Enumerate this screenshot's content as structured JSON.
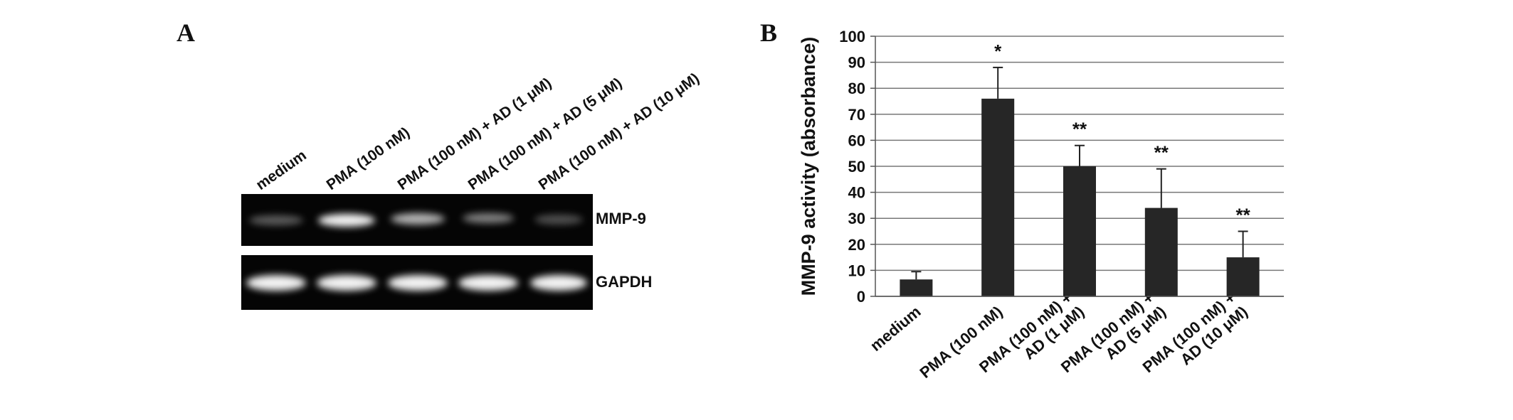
{
  "panel_labels": [
    "A",
    "B"
  ],
  "gel": {
    "lanes": [
      "medium",
      "PMA (100 nM)",
      "PMA (100 nM) + AD (1 μM)",
      "PMA (100 nM) + AD (5 μM)",
      "PMA (100 nM) + AD (10 μM)"
    ],
    "genes": [
      "MMP-9",
      "GAPDH"
    ]
  },
  "chart_data": {
    "type": "bar",
    "ylabel": "MMP-9 activity (absorbance)",
    "categories": [
      "medium",
      "PMA (100 nM)",
      "PMA (100 nM) +\nAD (1 μM)",
      "PMA (100 nM) +\nAD (5 μM)",
      "PMA (100 nM) +\nAD (10 μM)"
    ],
    "series": [
      {
        "name": "MMP-9 activity",
        "color": "#262626",
        "values": [
          6.5,
          76,
          50,
          34,
          15
        ],
        "errors": [
          3,
          12,
          8,
          15,
          10
        ]
      }
    ],
    "annotations": [
      null,
      "*",
      "**",
      "**",
      "**"
    ],
    "ylim": [
      0,
      100
    ],
    "yticks": [
      0,
      10,
      20,
      30,
      40,
      50,
      60,
      70,
      80,
      90,
      100
    ],
    "grid": true
  }
}
